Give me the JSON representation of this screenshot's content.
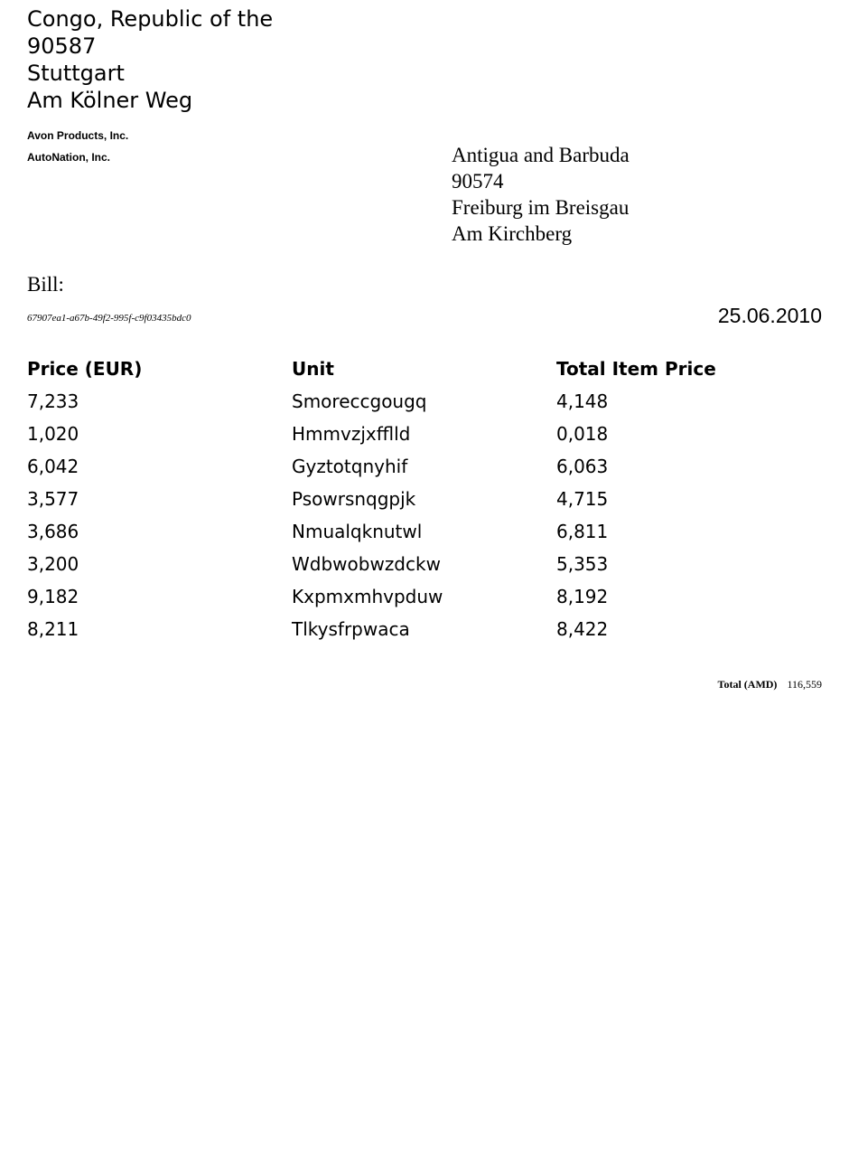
{
  "sender": {
    "country": "Congo, Republic of the",
    "postal_code": "90587",
    "city": "Stuttgart",
    "street": "Am Kölner Weg"
  },
  "companies": [
    "Avon Products, Inc.",
    "AutoNation, Inc."
  ],
  "recipient": {
    "country": "Antigua and Barbuda",
    "postal_code": "90574",
    "city": "Freiburg im Breisgau",
    "street": "Am Kirchberg"
  },
  "bill": {
    "label": "Bill:",
    "id": "67907ea1-a67b-49f2-995f-c9f03435bdc0",
    "date": "25.06.2010"
  },
  "table": {
    "headers": [
      "Price (EUR)",
      "Unit",
      "Total Item Price"
    ],
    "rows": [
      [
        "7,233",
        "Smoreccgougq",
        "4,148"
      ],
      [
        "1,020",
        "Hmmvzjxfflld",
        "0,018"
      ],
      [
        "6,042",
        "Gyztotqnyhif",
        "6,063"
      ],
      [
        "3,577",
        "Psowrsnqgpjk",
        "4,715"
      ],
      [
        "3,686",
        "Nmualqknutwl",
        "6,811"
      ],
      [
        "3,200",
        "Wdbwobwzdckw",
        "5,353"
      ],
      [
        "9,182",
        "Kxpmxmhvpduw",
        "8,192"
      ],
      [
        "8,211",
        "Tlkysfrpwaca",
        "8,422"
      ]
    ]
  },
  "total": {
    "label": "Total (AMD)",
    "value": "116,559"
  }
}
